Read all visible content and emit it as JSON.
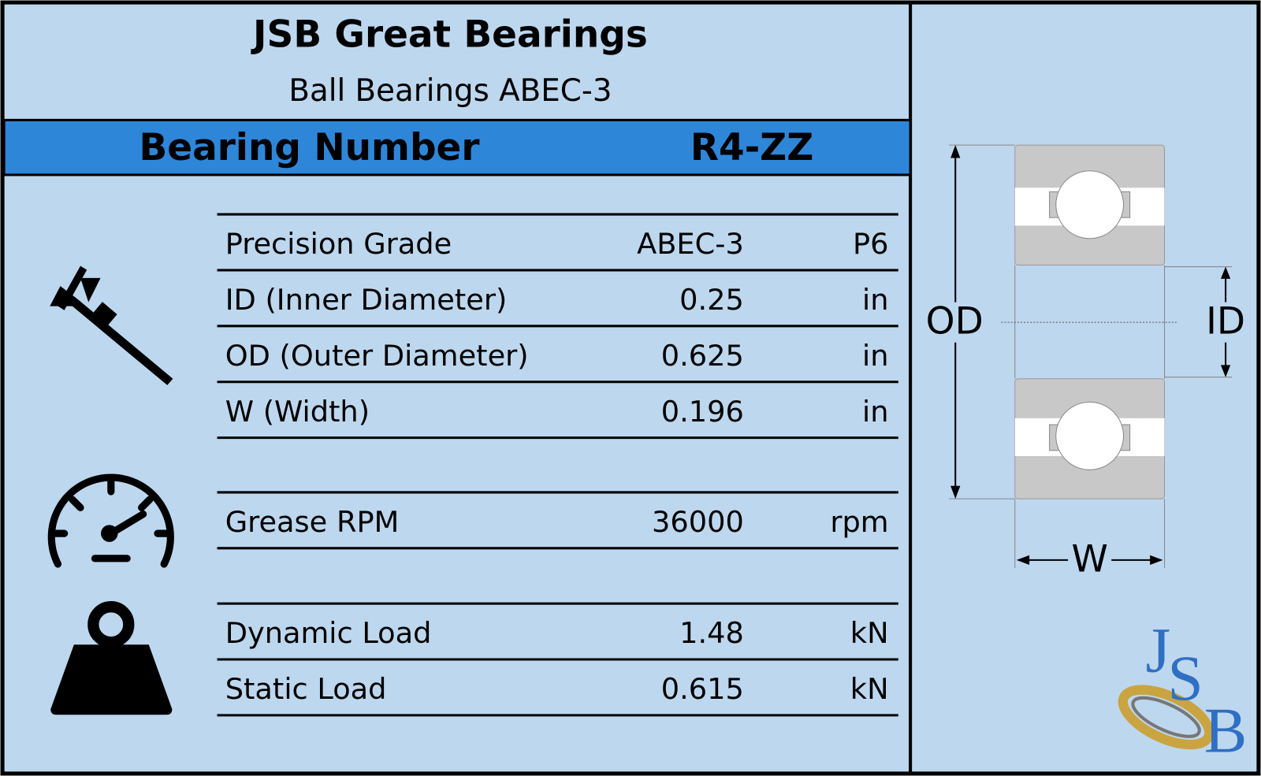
{
  "header": {
    "title": "JSB Great Bearings",
    "subtitle": "Ball Bearings ABEC-3"
  },
  "bearing": {
    "label": "Bearing Number",
    "number": "R4-ZZ"
  },
  "table": {
    "groups": [
      [
        [
          "Precision Grade",
          "ABEC-3",
          "P6"
        ],
        [
          "ID (Inner Diameter)",
          "0.25",
          "in"
        ],
        [
          "OD (Outer Diameter)",
          "0.625",
          "in"
        ],
        [
          "W (Width)",
          "0.196",
          "in"
        ]
      ],
      [
        [
          "Grease RPM",
          "36000",
          "rpm"
        ]
      ],
      [
        [
          "Dynamic Load",
          "1.48",
          "kN"
        ],
        [
          "Static Load",
          "0.615",
          "kN"
        ]
      ]
    ]
  },
  "diagram": {
    "od": "OD",
    "id": "ID",
    "w": "W"
  },
  "logo": [
    "J",
    "S",
    "B"
  ]
}
